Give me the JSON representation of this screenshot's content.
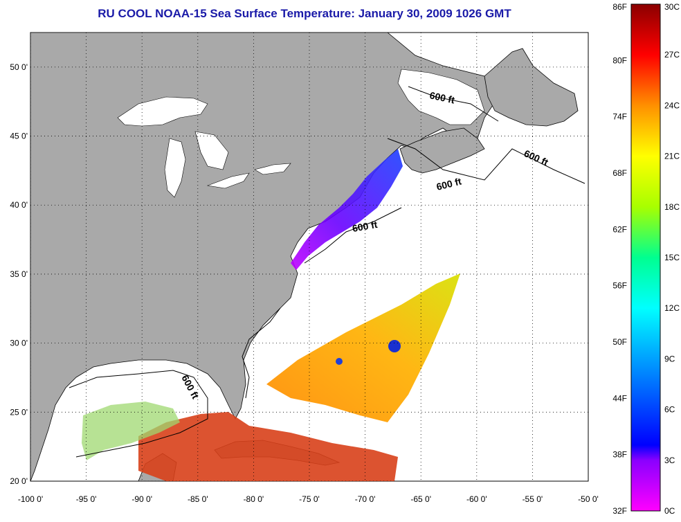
{
  "title": "RU COOL  NOAA-15  Sea Surface Temperature:  January 30, 2009 1026 GMT",
  "map": {
    "lon_range": [
      -100,
      -50
    ],
    "lat_range": [
      20,
      52.5
    ],
    "lon_ticks": [
      "-100 0'",
      "-95 0'",
      "-90 0'",
      "-85 0'",
      "-80 0'",
      "-75 0'",
      "-70 0'",
      "-65 0'",
      "-60 0'",
      "-55 0'",
      "-50 0'"
    ],
    "lat_ticks": [
      "20 0'",
      "25 0'",
      "30 0'",
      "35 0'",
      "40 0'",
      "45 0'",
      "50 0'"
    ],
    "contour_labels": [
      "600 ft",
      "600 ft",
      "600 ft",
      "600 ft",
      "600 ft"
    ],
    "colors": {
      "land": "#a9a9a9",
      "water_no_data": "#ffffff",
      "title": "#1a1aa8"
    }
  },
  "colorbar": {
    "fahrenheit_labels": [
      "86F",
      "80F",
      "74F",
      "68F",
      "62F",
      "56F",
      "50F",
      "44F",
      "38F",
      "32F"
    ],
    "celsius_labels": [
      "30C",
      "27C",
      "24C",
      "21C",
      "18C",
      "15C",
      "12C",
      "9C",
      "6C",
      "3C",
      "0C"
    ],
    "range_c": [
      0,
      30
    ]
  }
}
